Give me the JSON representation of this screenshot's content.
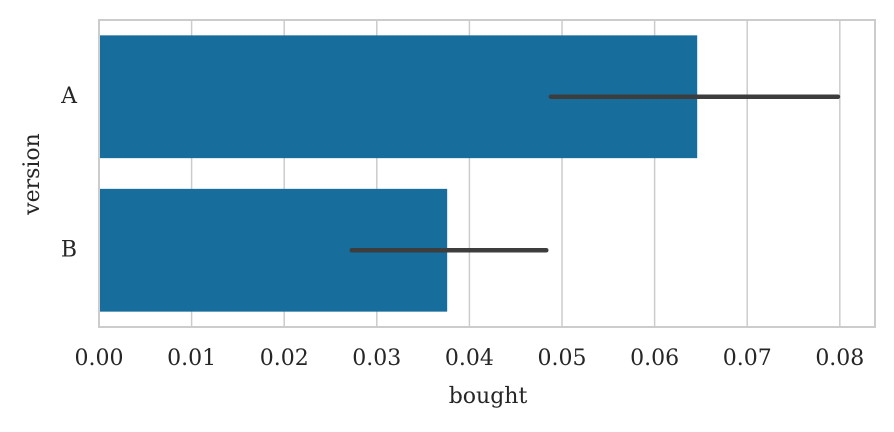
{
  "chart_data": {
    "type": "barh",
    "x_label": "bought",
    "y_label": "version",
    "categories": [
      "A",
      "B"
    ],
    "values": [
      0.0646,
      0.0376
    ],
    "ci_lower": [
      0.0488,
      0.0273
    ],
    "ci_upper": [
      0.0798,
      0.0483
    ],
    "color": "#176d9c",
    "error_color": "#3d3d3d",
    "xlim": [
      0,
      0.0838
    ],
    "xticks": [
      {
        "value": 0,
        "label": "0.00"
      },
      {
        "value": 0.01,
        "label": "0.01"
      },
      {
        "value": 0.02,
        "label": "0.02"
      },
      {
        "value": 0.03,
        "label": "0.03"
      },
      {
        "value": 0.04,
        "label": "0.04"
      },
      {
        "value": 0.05,
        "label": "0.05"
      },
      {
        "value": 0.06,
        "label": "0.06"
      },
      {
        "value": 0.07,
        "label": "0.07"
      },
      {
        "value": 0.08,
        "label": "0.08"
      }
    ],
    "grid": true
  }
}
